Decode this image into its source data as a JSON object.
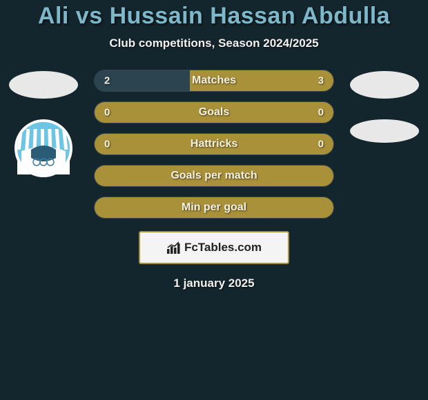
{
  "title": "Ali vs Hussain Hassan Abdulla",
  "subtitle": "Club competitions, Season 2024/2025",
  "date": "1 january 2025",
  "brand": "FcTables.com",
  "colors": {
    "background": "#14262d",
    "title": "#7eb7c9",
    "text": "#f2f2f2",
    "bar_primary": "#a9913a",
    "bar_secondary": "#2c4450",
    "brand_border": "#a9913a",
    "brand_bg": "#f4f4f4",
    "placeholder": "#e8e8e8",
    "logo_sky": "#6cc5e3",
    "logo_white": "#ffffff"
  },
  "side_left": {
    "has_photo_placeholder": true,
    "has_logo": true
  },
  "side_right": {
    "has_photo_placeholder": true,
    "has_logo_placeholder": true
  },
  "stats": [
    {
      "label": "Matches",
      "left_value": "2",
      "right_value": "3",
      "left_pct": 40,
      "right_pct": 60,
      "left_color": "#2c4450",
      "right_color": "#a9913a",
      "show_values": true
    },
    {
      "label": "Goals",
      "left_value": "0",
      "right_value": "0",
      "left_pct": 50,
      "right_pct": 50,
      "left_color": "#a9913a",
      "right_color": "#a9913a",
      "show_values": true
    },
    {
      "label": "Hattricks",
      "left_value": "0",
      "right_value": "0",
      "left_pct": 50,
      "right_pct": 50,
      "left_color": "#a9913a",
      "right_color": "#a9913a",
      "show_values": true
    },
    {
      "label": "Goals per match",
      "left_value": "",
      "right_value": "",
      "left_pct": 50,
      "right_pct": 50,
      "left_color": "#a9913a",
      "right_color": "#a9913a",
      "show_values": false
    },
    {
      "label": "Min per goal",
      "left_value": "",
      "right_value": "",
      "left_pct": 50,
      "right_pct": 50,
      "left_color": "#a9913a",
      "right_color": "#a9913a",
      "show_values": false
    }
  ]
}
